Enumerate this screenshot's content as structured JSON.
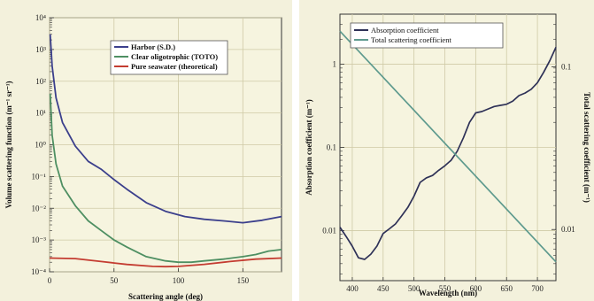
{
  "chart_data": [
    {
      "type": "line",
      "xlabel": "Scattering angle (deg)",
      "ylabel": "Volume scattering function (m⁻¹ sr⁻¹)",
      "yscale": "log",
      "xlim": [
        0,
        180
      ],
      "ylim": [
        0.0001,
        10000
      ],
      "grid": true,
      "legend_position": "upper-center",
      "x_ticks": [
        "0",
        "50",
        "100",
        "150"
      ],
      "y_ticks": [
        "10⁴",
        "10³",
        "10²",
        "10¹",
        "10⁰",
        "10⁻¹",
        "10⁻²",
        "10⁻³",
        "10⁻⁴"
      ],
      "series": [
        {
          "name": "Harbor (S.D.)",
          "color": "#3b3f8c",
          "x": [
            0.5,
            2,
            5,
            10,
            20,
            30,
            40,
            50,
            60,
            75,
            90,
            105,
            120,
            135,
            150,
            165,
            180
          ],
          "y": [
            3000,
            300,
            30,
            5,
            0.9,
            0.3,
            0.17,
            0.08,
            0.04,
            0.015,
            0.008,
            0.0055,
            0.0045,
            0.004,
            0.0035,
            0.0042,
            0.0055
          ]
        },
        {
          "name": "Clear oligotrophic (TOTO)",
          "color": "#4e8f62",
          "x": [
            0.5,
            2,
            5,
            10,
            20,
            30,
            40,
            50,
            60,
            75,
            90,
            100,
            110,
            120,
            135,
            150,
            160,
            170,
            180
          ],
          "y": [
            40,
            2,
            0.25,
            0.05,
            0.012,
            0.004,
            0.002,
            0.001,
            0.0006,
            0.0003,
            0.00022,
            0.0002,
            0.0002,
            0.00022,
            0.00025,
            0.0003,
            0.00035,
            0.00045,
            0.0005
          ]
        },
        {
          "name": "Pure seawater (theoretical)",
          "color": "#c43c31",
          "x": [
            0,
            20,
            40,
            60,
            80,
            90,
            100,
            120,
            140,
            160,
            180
          ],
          "y": [
            0.00027,
            0.00026,
            0.00021,
            0.00017,
            0.000148,
            0.000145,
            0.000148,
            0.000172,
            0.00021,
            0.00025,
            0.00027
          ]
        }
      ]
    },
    {
      "type": "line",
      "xlabel": "Wavelength (nm)",
      "ylabel": "Absorption coefficient (m⁻¹)",
      "y2label": "Total scattering coefficient (m⁻¹)",
      "yscale": "log",
      "xlim": [
        380,
        730
      ],
      "ylim": [
        0.0025,
        4
      ],
      "grid": true,
      "legend_position": "top-left",
      "x_ticks": [
        "400",
        "450",
        "500",
        "550",
        "600",
        "650",
        "700"
      ],
      "y_ticks": [
        "1",
        "0.1",
        "0.01"
      ],
      "y2_ticks": [
        "0.1",
        "0.01"
      ],
      "series": [
        {
          "name": "Absorption coefficient",
          "color": "#2e3157",
          "x": [
            380,
            390,
            400,
            410,
            420,
            430,
            440,
            450,
            460,
            470,
            480,
            490,
            500,
            510,
            520,
            530,
            540,
            550,
            560,
            570,
            580,
            590,
            600,
            610,
            620,
            630,
            640,
            650,
            660,
            670,
            680,
            690,
            700,
            710,
            720,
            730
          ],
          "y": [
            0.011,
            0.0085,
            0.0065,
            0.0047,
            0.0045,
            0.0052,
            0.0065,
            0.0092,
            0.0105,
            0.012,
            0.015,
            0.019,
            0.026,
            0.038,
            0.043,
            0.046,
            0.053,
            0.06,
            0.07,
            0.09,
            0.13,
            0.2,
            0.26,
            0.27,
            0.29,
            0.31,
            0.32,
            0.33,
            0.36,
            0.42,
            0.45,
            0.5,
            0.6,
            0.8,
            1.1,
            1.6
          ]
        },
        {
          "name": "Total scattering coefficient",
          "color": "#5e9a8e",
          "x": [
            380,
            730
          ],
          "y": [
            2.5,
            0.0042
          ]
        }
      ]
    }
  ]
}
